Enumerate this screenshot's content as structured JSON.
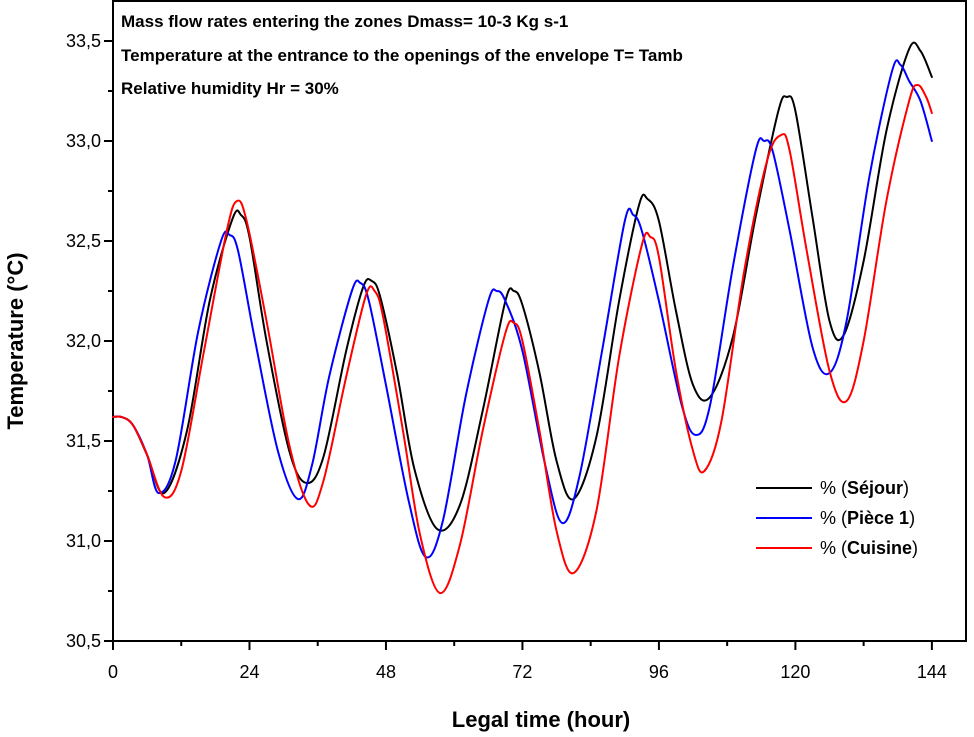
{
  "chart_data": {
    "type": "line",
    "title": "",
    "xlabel": "Legal time (hour)",
    "ylabel": "Temperature (°C)",
    "xlim": [
      0,
      150
    ],
    "ylim": [
      30.5,
      33.7
    ],
    "xticks": [
      0,
      24,
      48,
      72,
      96,
      120,
      144
    ],
    "xtick_labels": [
      "0",
      "24",
      "48",
      "72",
      "96",
      "120",
      "144"
    ],
    "yticks": [
      30.5,
      31.0,
      31.5,
      32.0,
      32.5,
      33.0,
      33.5
    ],
    "ytick_labels": [
      "30,5",
      "31,0",
      "31,5",
      "32,0",
      "32,5",
      "33,0",
      "33,5"
    ],
    "grid": false,
    "legend_position": "bottom-right",
    "annotations": [
      "Mass flow rates entering the zones Dmass= 10-3 Kg s-1",
      "Temperature at the entrance to the openings of the envelope T= Tamb",
      "Relative humidity Hr = 30%"
    ],
    "series": [
      {
        "name": "Séjour",
        "legend_prefix": "% (",
        "legend_bold": "Séjour",
        "legend_suffix": ")",
        "color": "#000000",
        "x": [
          0,
          1.5,
          3.5,
          6,
          9,
          13,
          17,
          21,
          22.5,
          24,
          27,
          31,
          34,
          37,
          41,
          44,
          45.5,
          47,
          50,
          53,
          57,
          61,
          65,
          69,
          70.5,
          72,
          75,
          78,
          81,
          85,
          89,
          92.5,
          94,
          96,
          99,
          102,
          105,
          109,
          113,
          117,
          118.5,
          120,
          123,
          126,
          128.5,
          132,
          136,
          140,
          142,
          144
        ],
        "y": [
          31.62,
          31.62,
          31.58,
          31.43,
          31.24,
          31.55,
          32.2,
          32.61,
          32.63,
          32.52,
          32.0,
          31.45,
          31.29,
          31.42,
          31.95,
          32.27,
          32.3,
          32.22,
          31.83,
          31.36,
          31.06,
          31.18,
          31.65,
          32.2,
          32.25,
          32.18,
          31.84,
          31.4,
          31.21,
          31.52,
          32.2,
          32.68,
          32.71,
          32.6,
          32.15,
          31.78,
          31.72,
          32.02,
          32.62,
          33.15,
          33.22,
          33.15,
          32.62,
          32.1,
          32.03,
          32.4,
          33.05,
          33.46,
          33.45,
          33.32
        ]
      },
      {
        "name": "Pièce 1",
        "legend_prefix": "% (",
        "legend_bold": "Pièce 1",
        "legend_suffix": ")",
        "color": "#0000ff",
        "x": [
          0,
          1.5,
          3.5,
          6,
          8,
          11,
          15,
          19,
          20.5,
          22,
          25,
          29,
          32.5,
          35,
          38,
          42,
          43.5,
          45,
          48,
          52,
          55,
          58,
          62,
          66,
          67.5,
          69,
          72,
          76,
          79,
          82,
          86,
          90,
          91.5,
          93,
          96,
          100,
          102.5,
          105,
          109,
          113,
          114.5,
          116,
          119,
          123,
          126,
          129,
          133,
          137,
          138.5,
          140,
          142,
          144
        ],
        "y": [
          31.62,
          31.62,
          31.58,
          31.43,
          31.24,
          31.4,
          32.05,
          32.5,
          32.53,
          32.45,
          32.0,
          31.45,
          31.21,
          31.38,
          31.82,
          32.25,
          32.29,
          32.2,
          31.78,
          31.2,
          30.92,
          31.1,
          31.72,
          32.2,
          32.25,
          32.2,
          31.95,
          31.38,
          31.09,
          31.32,
          31.95,
          32.6,
          32.63,
          32.55,
          32.2,
          31.68,
          31.53,
          31.68,
          32.37,
          32.95,
          33.0,
          32.95,
          32.55,
          31.97,
          31.84,
          32.1,
          32.82,
          33.35,
          33.38,
          33.3,
          33.2,
          33.0
        ]
      },
      {
        "name": "Cuisine",
        "legend_prefix": "% (",
        "legend_bold": "Cuisine",
        "legend_suffix": ")",
        "color": "#ff0000",
        "x": [
          0,
          1.5,
          3.5,
          6,
          9,
          12,
          16,
          20,
          21.8,
          23.5,
          27,
          31,
          34.5,
          37,
          41,
          44.5,
          46,
          47.5,
          51,
          54,
          57.5,
          61,
          65,
          69,
          70.5,
          72,
          75,
          78,
          81,
          85,
          89,
          93,
          94.5,
          96,
          99,
          102,
          104,
          107,
          111,
          115,
          117.5,
          119,
          122,
          126,
          129,
          132,
          136,
          140,
          141.5,
          143,
          144
        ],
        "y": [
          31.62,
          31.62,
          31.58,
          31.43,
          31.22,
          31.35,
          31.95,
          32.55,
          32.7,
          32.6,
          32.1,
          31.48,
          31.18,
          31.3,
          31.82,
          32.23,
          32.25,
          32.12,
          31.55,
          31.03,
          30.74,
          30.98,
          31.55,
          32.04,
          32.09,
          32.0,
          31.55,
          31.05,
          30.84,
          31.15,
          31.92,
          32.48,
          32.52,
          32.42,
          31.85,
          31.45,
          31.35,
          31.6,
          32.35,
          32.9,
          33.03,
          32.95,
          32.45,
          31.85,
          31.7,
          32.0,
          32.7,
          33.2,
          33.28,
          33.22,
          33.14
        ]
      }
    ]
  }
}
